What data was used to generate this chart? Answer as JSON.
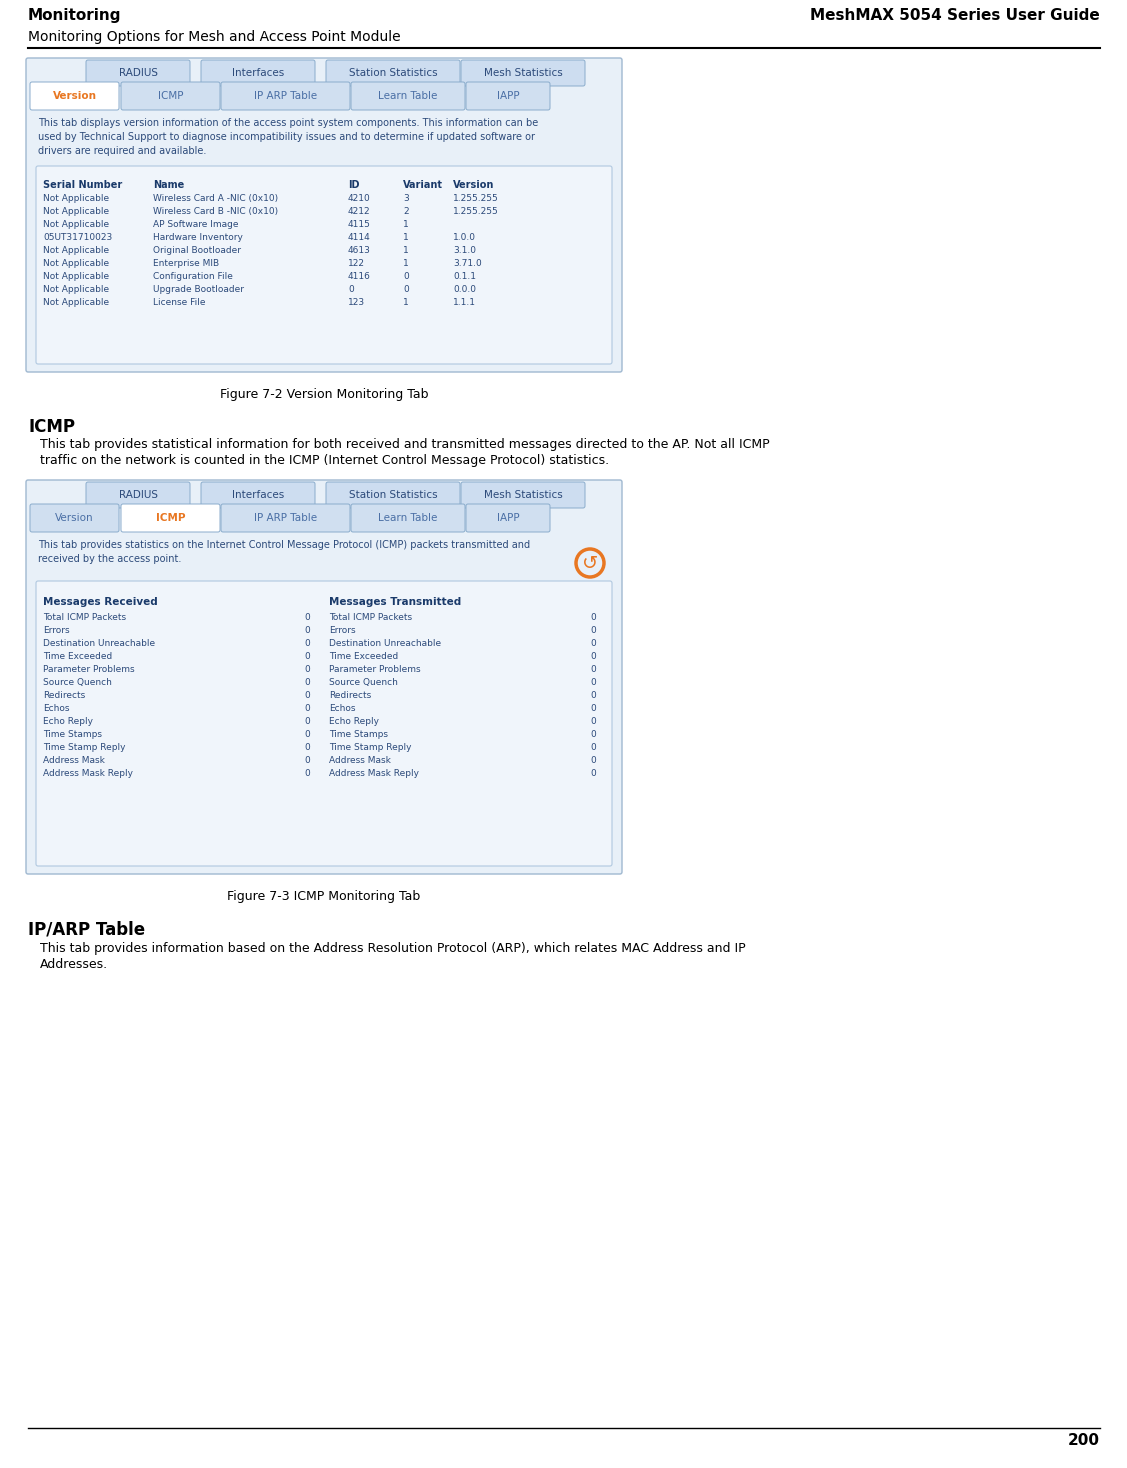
{
  "page_title_left": "Monitoring",
  "page_title_right": "MeshMAX 5054 Series User Guide",
  "page_subtitle": "Monitoring Options for Mesh and Access Point Module",
  "page_number": "200",
  "bg_color": "#ffffff",
  "header_line_color": "#000000",
  "footer_line_color": "#000000",
  "fig1_caption": "Figure 7-2 Version Monitoring Tab",
  "fig1_tabs_top": [
    "RADIUS",
    "Interfaces",
    "Station Statistics",
    "Mesh Statistics"
  ],
  "fig1_tabs_bottom": [
    "Version",
    "ICMP",
    "IP ARP Table",
    "Learn Table",
    "IAPP"
  ],
  "fig1_active_tab": "Version",
  "fig1_description": "This tab displays version information of the access point system components. This information can be\nused by Technical Support to diagnose incompatibility issues and to determine if updated software or\ndrivers are required and available.",
  "fig1_table_headers": [
    "Serial Number",
    "Name",
    "ID",
    "Variant",
    "Version"
  ],
  "fig1_table_rows": [
    [
      "Not Applicable",
      "Wireless Card A -NIC (0x10)",
      "4210",
      "3",
      "1.255.255"
    ],
    [
      "Not Applicable",
      "Wireless Card B -NIC (0x10)",
      "4212",
      "2",
      "1.255.255"
    ],
    [
      "Not Applicable",
      "AP Software Image",
      "4115",
      "1",
      ""
    ],
    [
      "05UT31710023",
      "Hardware Inventory",
      "4114",
      "1",
      "1.0.0"
    ],
    [
      "Not Applicable",
      "Original Bootloader",
      "4613",
      "1",
      "3.1.0"
    ],
    [
      "Not Applicable",
      "Enterprise MIB",
      "122",
      "1",
      "3.71.0"
    ],
    [
      "Not Applicable",
      "Configuration File",
      "4116",
      "0",
      "0.1.1"
    ],
    [
      "Not Applicable",
      "Upgrade Bootloader",
      "0",
      "0",
      "0.0.0"
    ],
    [
      "Not Applicable",
      "License File",
      "123",
      "1",
      "1.1.1"
    ]
  ],
  "section_icmp_title": "ICMP",
  "section_icmp_text": "This tab provides statistical information for both received and transmitted messages directed to the AP. Not all ICMP\ntraffic on the network is counted in the ICMP (Internet Control Message Protocol) statistics.",
  "fig2_caption": "Figure 7-3 ICMP Monitoring Tab",
  "fig2_tabs_top": [
    "RADIUS",
    "Interfaces",
    "Station Statistics",
    "Mesh Statistics"
  ],
  "fig2_tabs_bottom": [
    "Version",
    "ICMP",
    "IP ARP Table",
    "Learn Table",
    "IAPP"
  ],
  "fig2_active_tab": "ICMP",
  "fig2_description": "This tab provides statistics on the Internet Control Message Protocol (ICMP) packets transmitted and\nreceived by the access point.",
  "fig2_col1_header": "Messages Received",
  "fig2_col2_header": "Messages Transmitted",
  "fig2_rows": [
    "Total ICMP Packets",
    "Errors",
    "Destination Unreachable",
    "Time Exceeded",
    "Parameter Problems",
    "Source Quench",
    "Redirects",
    "Echos",
    "Echo Reply",
    "Time Stamps",
    "Time Stamp Reply",
    "Address Mask",
    "Address Mask Reply"
  ],
  "section_arp_title": "IP/ARP Table",
  "section_arp_text": "This tab provides information based on the Address Resolution Protocol (ARP), which relates MAC Address and IP\nAddresses.",
  "tab_bg": "#d6e4f7",
  "tab_active_color": "#e87722",
  "tab_text_color": "#4a6fa5",
  "inner_box_color": "#dce8f5",
  "inner_box_border": "#b0c8e0",
  "text_color_dark": "#2c4a7a",
  "text_color_header": "#1a3a6a"
}
